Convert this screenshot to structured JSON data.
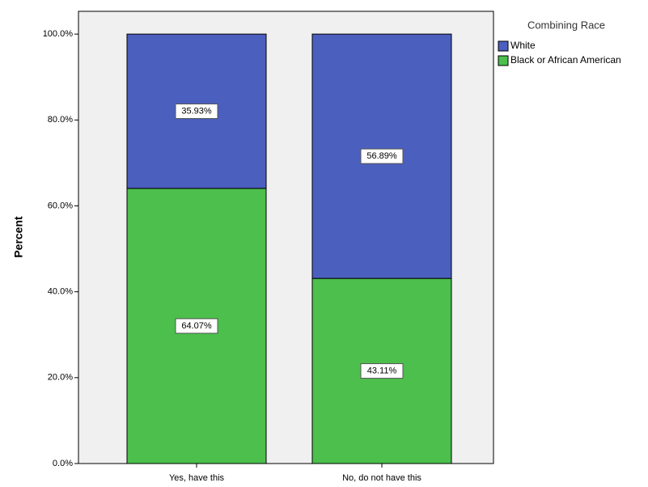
{
  "chart_data": {
    "type": "stacked_bar",
    "y_label": "Percent",
    "legend_title": "Combining Race",
    "legend_position": "right",
    "categories": [
      "Yes, have this",
      "No, do not have this"
    ],
    "series": [
      {
        "name": "White",
        "color": "#4b5fbf",
        "values": [
          35.93,
          56.89
        ],
        "value_labels": [
          "35.93%",
          "56.89%"
        ]
      },
      {
        "name": "Black or African American",
        "color": "#4cbf4c",
        "values": [
          64.07,
          43.11
        ],
        "value_labels": [
          "64.07%",
          "43.11%"
        ]
      }
    ],
    "ylim": [
      0,
      105.3
    ],
    "yticks": [
      {
        "value": 0,
        "label": "0.0%"
      },
      {
        "value": 20,
        "label": "20.0%"
      },
      {
        "value": 40,
        "label": "40.0%"
      },
      {
        "value": 60,
        "label": "60.0%"
      },
      {
        "value": 80,
        "label": "80.0%"
      },
      {
        "value": 100,
        "label": "100.0%"
      }
    ]
  }
}
